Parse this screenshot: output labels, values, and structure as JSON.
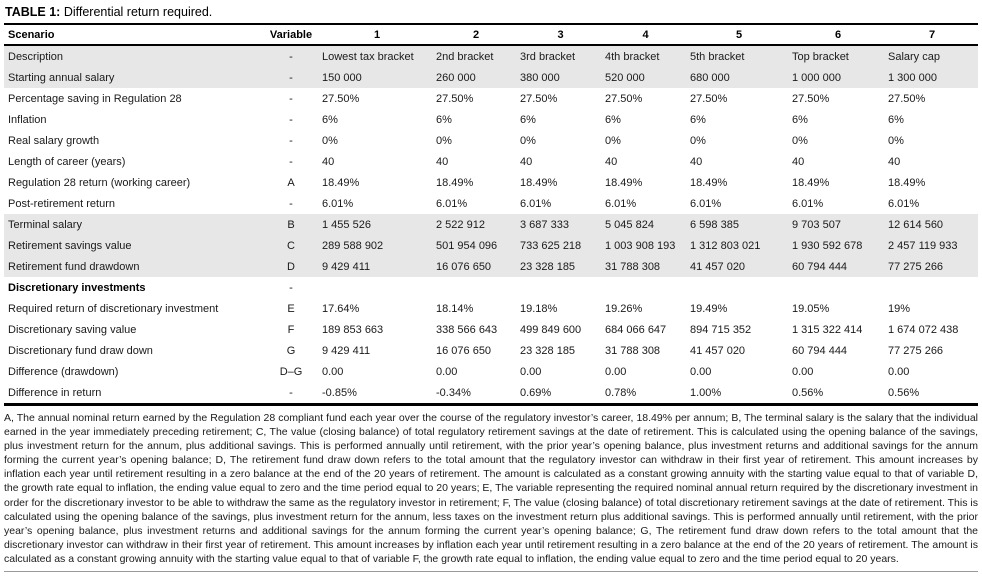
{
  "title": {
    "label": "TABLE 1:",
    "text": "Differential return required."
  },
  "colors": {
    "row_shade": "#e7e7e7",
    "rule": "#000000",
    "hairline": "#9a9a9a"
  },
  "table": {
    "columns": [
      "Scenario",
      "Variable",
      "1",
      "2",
      "3",
      "4",
      "5",
      "6",
      "7"
    ],
    "rows": [
      {
        "scenario": "Description",
        "variable": "-",
        "values": [
          "Lowest tax bracket",
          "2nd bracket",
          "3rd bracket",
          "4th bracket",
          "5th bracket",
          "Top bracket",
          "Salary cap"
        ],
        "shaded": true
      },
      {
        "scenario": "Starting annual salary",
        "variable": "-",
        "values": [
          "150 000",
          "260 000",
          "380 000",
          "520 000",
          "680 000",
          "1 000 000",
          "1 300 000"
        ],
        "shaded": true
      },
      {
        "scenario": "Percentage saving in Regulation 28",
        "variable": "-",
        "values": [
          "27.50%",
          "27.50%",
          "27.50%",
          "27.50%",
          "27.50%",
          "27.50%",
          "27.50%"
        ]
      },
      {
        "scenario": "Inflation",
        "variable": "-",
        "values": [
          "6%",
          "6%",
          "6%",
          "6%",
          "6%",
          "6%",
          "6%"
        ]
      },
      {
        "scenario": "Real salary growth",
        "variable": "-",
        "values": [
          "0%",
          "0%",
          "0%",
          "0%",
          "0%",
          "0%",
          "0%"
        ]
      },
      {
        "scenario": "Length of career (years)",
        "variable": "-",
        "values": [
          "40",
          "40",
          "40",
          "40",
          "40",
          "40",
          "40"
        ]
      },
      {
        "scenario": "Regulation 28 return (working career)",
        "variable": "A",
        "values": [
          "18.49%",
          "18.49%",
          "18.49%",
          "18.49%",
          "18.49%",
          "18.49%",
          "18.49%"
        ]
      },
      {
        "scenario": "Post-retirement return",
        "variable": "-",
        "values": [
          "6.01%",
          "6.01%",
          "6.01%",
          "6.01%",
          "6.01%",
          "6.01%",
          "6.01%"
        ]
      },
      {
        "scenario": "Terminal salary",
        "variable": "B",
        "values": [
          "1 455 526",
          "2 522 912",
          "3 687 333",
          "5 045 824",
          "6 598 385",
          "9 703 507",
          "12 614 560"
        ],
        "shaded": true
      },
      {
        "scenario": "Retirement savings value",
        "variable": "C",
        "values": [
          "289 588 902",
          "501 954 096",
          "733 625 218",
          "1 003 908 193",
          "1 312 803 021",
          "1 930 592 678",
          "2 457 119 933"
        ],
        "shaded": true
      },
      {
        "scenario": "Retirement fund drawdown",
        "variable": "D",
        "values": [
          "9 429 411",
          "16 076 650",
          "23 328 185",
          "31 788 308",
          "41 457 020",
          "60 794 444",
          "77 275 266"
        ],
        "shaded": true
      },
      {
        "scenario": "Discretionary investments",
        "variable": "-",
        "values": [
          "",
          "",
          "",
          "",
          "",
          "",
          ""
        ],
        "bold": true
      },
      {
        "scenario": "Required return of discretionary investment",
        "variable": "E",
        "values": [
          "17.64%",
          "18.14%",
          "19.18%",
          "19.26%",
          "19.49%",
          "19.05%",
          "19%"
        ]
      },
      {
        "scenario": "Discretionary saving value",
        "variable": "F",
        "values": [
          "189 853 663",
          "338 566 643",
          "499 849 600",
          "684 066 647",
          "894 715 352",
          "1 315 322 414",
          "1 674 072 438"
        ]
      },
      {
        "scenario": "Discretionary fund draw down",
        "variable": "G",
        "values": [
          "9 429 411",
          "16 076 650",
          "23 328 185",
          "31 788 308",
          "41 457 020",
          "60 794 444",
          "77 275 266"
        ]
      },
      {
        "scenario": "Difference (drawdown)",
        "variable": "D–G",
        "values": [
          "0.00",
          "0.00",
          "0.00",
          "0.00",
          "0.00",
          "0.00",
          "0.00"
        ]
      },
      {
        "scenario": "Difference in return",
        "variable": "-",
        "values": [
          "-0.85%",
          "-0.34%",
          "0.69%",
          "0.78%",
          "1.00%",
          "0.56%",
          "0.56%"
        ]
      }
    ]
  },
  "footnote": "A, The annual nominal return earned by the Regulation 28 compliant fund each year over the course of the regulatory investor’s career, 18.49% per annum; B, The terminal salary is the salary that the individual earned in the year immediately preceding retirement; C, The value (closing balance) of total regulatory retirement savings at the date of retirement. This is calculated using the opening balance of the savings, plus investment return for the annum, plus additional savings. This is performed annually until retirement, with the prior year’s opening balance, plus investment returns and additional savings for the annum forming the current year’s opening balance; D, The retirement fund draw down refers to the total amount that the regulatory investor can withdraw in their first year of retirement. This amount increases by inflation each year until retirement resulting in a zero balance at the end of the 20 years of retirement. The amount is calculated as a constant growing annuity with the starting value equal to that of variable D, the growth rate equal to inflation, the ending value equal to zero and the time period equal to 20 years; E, The variable representing the required nominal annual return required by the discretionary investment in order for the discretionary investor to be able to withdraw the same as the regulatory investor in retirement; F, The value (closing balance) of total discretionary retirement savings at the date of retirement. This is calculated using the opening balance of the savings, plus investment return for the annum, less taxes on the investment return plus additional savings. This is performed annually until retirement, with the prior year’s opening balance, plus investment returns and additional savings for the annum forming the current year’s opening balance; G, The retirement fund draw down refers to the total amount that the discretionary investor can withdraw in their first year of retirement. This amount increases by inflation each year until retirement resulting in a zero balance at the end of the 20 years of retirement. The amount is calculated as a constant growing annuity with the starting value equal to that of variable F, the growth rate equal to inflation, the ending value equal to zero and the time period equal to 20 years."
}
